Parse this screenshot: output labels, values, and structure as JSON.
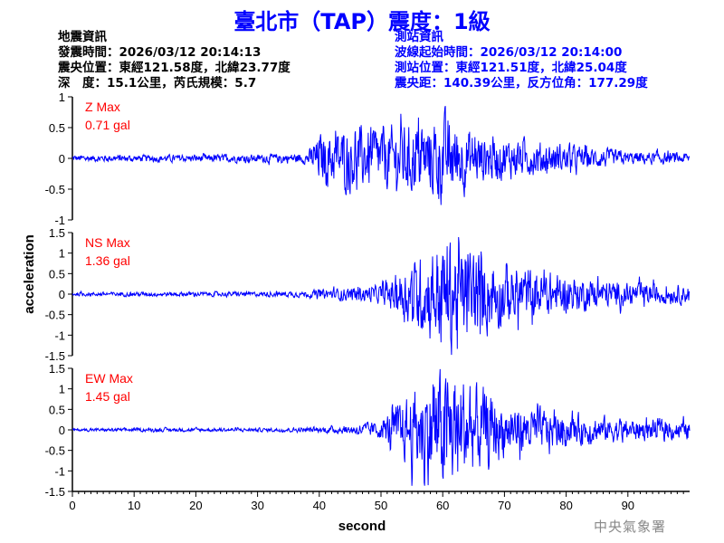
{
  "header": {
    "title": "臺北市（TAP）震度：1級",
    "quake_lines": [
      "地震資訊",
      "發震時間：2026/03/12 20:14:13",
      "震央位置：東經121.58度，北緯23.77度",
      "深　度：15.1公里，芮氏規模：5.7"
    ],
    "station_lines": [
      "測站資訊",
      "波線起始時間：2026/03/12 20:14:00",
      "測站位置：東經121.51度，北緯25.04度",
      "震央距：140.39公里，反方位角：177.29度"
    ]
  },
  "footer": "中央氣象署",
  "colors": {
    "title": "#0000ff",
    "trace": "#0000ff",
    "max_label": "#ff0000",
    "axis": "#000000"
  },
  "chart_data": [
    {
      "type": "line",
      "component": "Z",
      "max_label": "Z Max",
      "max_value": "0.71 gal",
      "ylim": [
        -1,
        1
      ],
      "yticks": [
        "1",
        "0.5",
        "0",
        "-0.5",
        "-1"
      ],
      "yticks_values": [
        1,
        0.5,
        0,
        -0.5,
        -1
      ],
      "xlim": [
        0,
        100
      ],
      "envelope": {
        "x": [
          0,
          10,
          30,
          38,
          40,
          45,
          50,
          55,
          57,
          60,
          65,
          70,
          80,
          90,
          100
        ],
        "amp": [
          0.05,
          0.05,
          0.06,
          0.08,
          0.35,
          0.45,
          0.45,
          0.5,
          0.55,
          0.65,
          0.4,
          0.3,
          0.2,
          0.1,
          0.08
        ]
      }
    },
    {
      "type": "line",
      "component": "NS",
      "max_label": "NS Max",
      "max_value": "1.36 gal",
      "ylim": [
        -1.5,
        1.5
      ],
      "yticks": [
        "1.5",
        "1",
        "0.5",
        "0",
        "-0.5",
        "-1",
        "-1.5"
      ],
      "yticks_values": [
        1.5,
        1,
        0.5,
        0,
        -0.5,
        -1,
        -1.5
      ],
      "xlim": [
        0,
        100
      ],
      "envelope": {
        "x": [
          0,
          10,
          30,
          38,
          40,
          45,
          50,
          52,
          55,
          58,
          60,
          65,
          70,
          80,
          90,
          100
        ],
        "amp": [
          0.04,
          0.05,
          0.05,
          0.07,
          0.1,
          0.15,
          0.2,
          0.4,
          0.7,
          1.0,
          1.3,
          1.0,
          0.7,
          0.4,
          0.25,
          0.2
        ]
      }
    },
    {
      "type": "line",
      "component": "EW",
      "max_label": "EW Max",
      "max_value": "1.45 gal",
      "ylim": [
        -1.5,
        1.5
      ],
      "yticks": [
        "1.5",
        "1",
        "0.5",
        "0",
        "-0.5",
        "-1",
        "-1.5"
      ],
      "yticks_values": [
        1.5,
        1,
        0.5,
        0,
        -0.5,
        -1,
        -1.5
      ],
      "xlim": [
        0,
        100
      ],
      "xticks": [
        "0",
        "10",
        "20",
        "30",
        "40",
        "50",
        "60",
        "70",
        "80",
        "90"
      ],
      "xticks_values": [
        0,
        10,
        20,
        30,
        40,
        50,
        60,
        70,
        80,
        90
      ],
      "envelope": {
        "x": [
          0,
          10,
          30,
          40,
          45,
          50,
          52,
          55,
          58,
          60,
          62,
          65,
          70,
          80,
          90,
          100
        ],
        "amp": [
          0.03,
          0.04,
          0.04,
          0.06,
          0.1,
          0.2,
          0.5,
          0.8,
          1.2,
          1.4,
          1.3,
          1.0,
          0.6,
          0.35,
          0.25,
          0.2
        ]
      }
    }
  ],
  "axes": {
    "ylabel": "acceleration",
    "xlabel": "second"
  }
}
